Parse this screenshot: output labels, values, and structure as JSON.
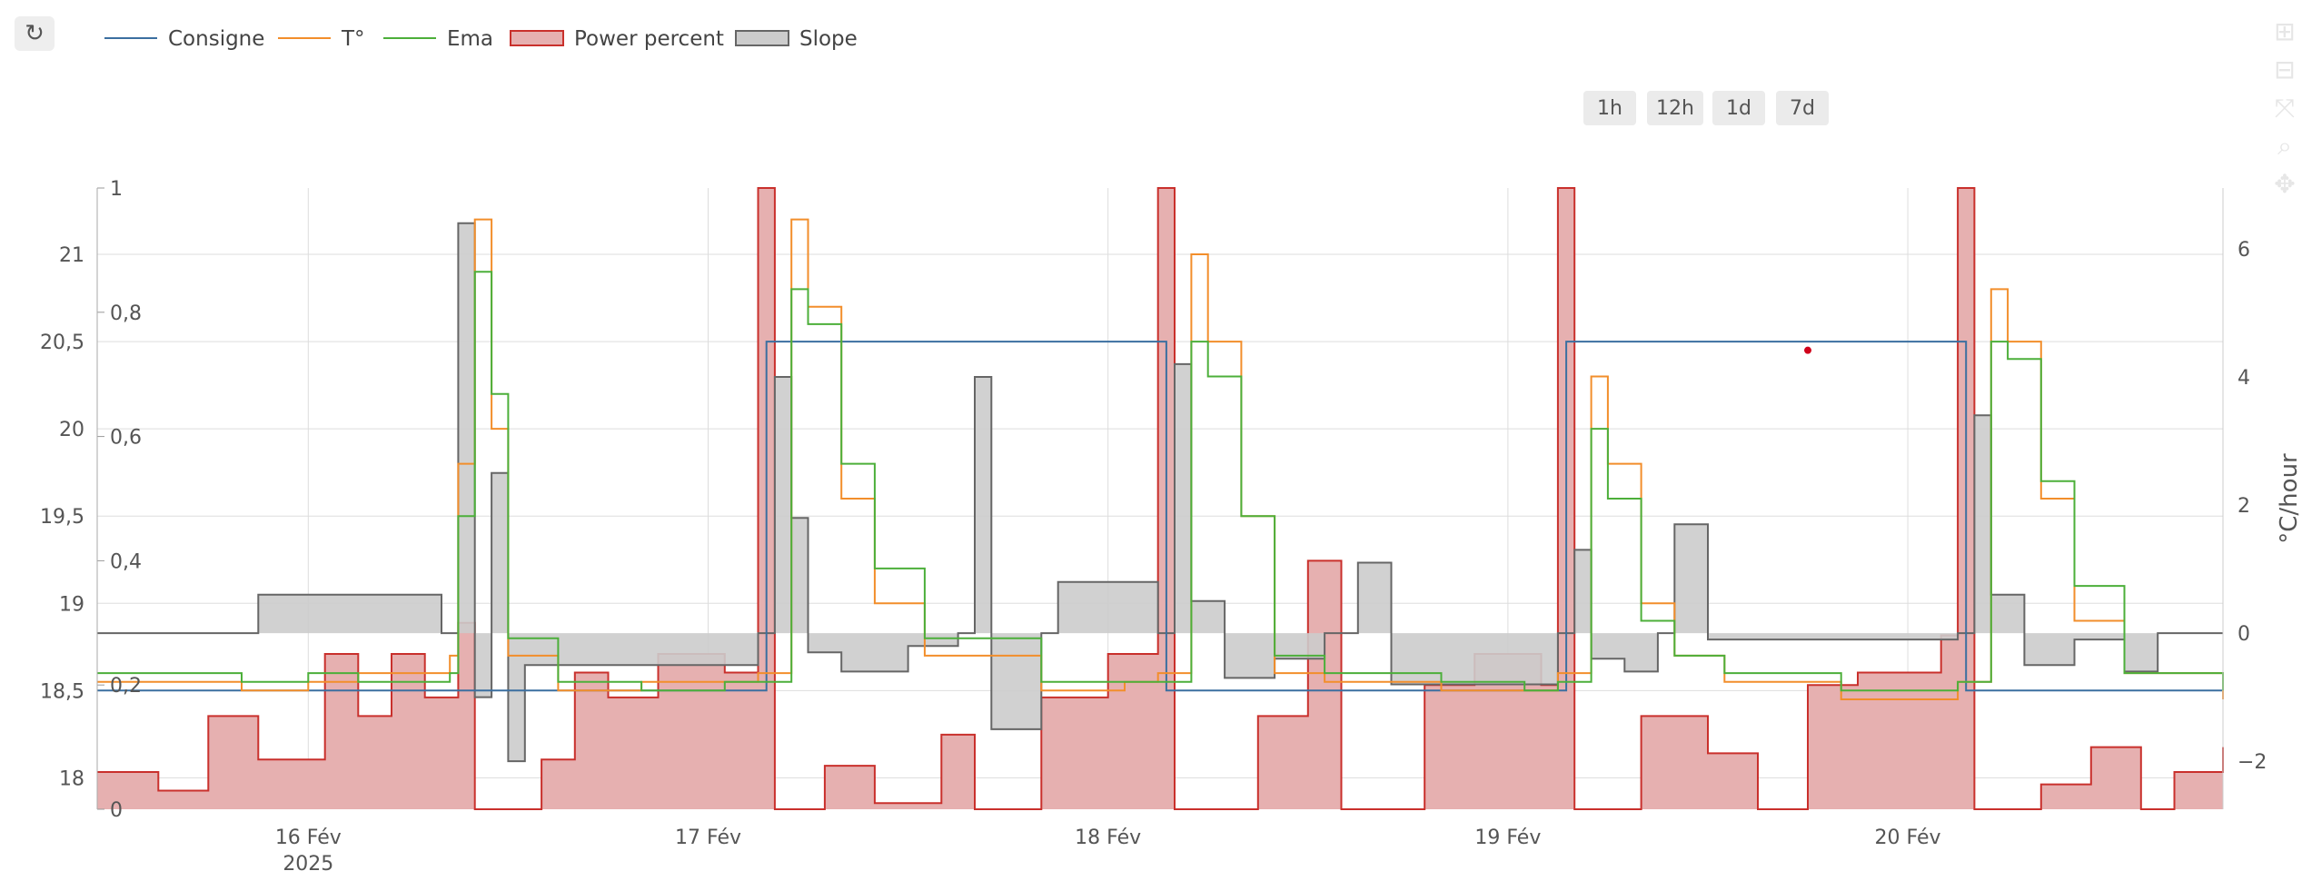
{
  "toolbar": {
    "refresh_icon": "↻"
  },
  "range_buttons": [
    "1h",
    "12h",
    "1d",
    "7d"
  ],
  "modebar": [
    "zoom-in-icon",
    "zoom-out-icon",
    "autoscale-icon",
    "zoom-icon",
    "pan-icon"
  ],
  "colors": {
    "consigne": "#3b6fa0",
    "temp": "#f28e2b",
    "ema": "#4caf3a",
    "power_line": "#c9302c",
    "power_fill": "#e6b0b0",
    "slope_line": "#666666",
    "slope_fill": "#cccccc",
    "grid": "#dddddd",
    "marker": "#d0021b"
  },
  "chart_data": {
    "type": "line",
    "legend_position": "top-left",
    "legend": [
      "Consigne",
      "T°",
      "Ema",
      "Power percent",
      "Slope"
    ],
    "grid": true,
    "x_ticks": [
      {
        "date": "2025-02-16 00:00",
        "label": "16 Fév",
        "sublabel": "2025"
      },
      {
        "date": "2025-02-17 00:00",
        "label": "17 Fév",
        "sublabel": ""
      },
      {
        "date": "2025-02-18 00:00",
        "label": "18 Fév",
        "sublabel": ""
      },
      {
        "date": "2025-02-19 00:00",
        "label": "19 Fév",
        "sublabel": ""
      },
      {
        "date": "2025-02-20 00:00",
        "label": "20 Fév",
        "sublabel": ""
      }
    ],
    "x_range": [
      "2025-02-15 11:20",
      "2025-02-20 18:55"
    ],
    "y_left": {
      "range": [
        17.82,
        21.38
      ],
      "ticks": [
        18,
        18.5,
        19,
        19.5,
        20,
        20.5,
        21
      ],
      "tick_labels": [
        "18",
        "18,5",
        "19",
        "19,5",
        "20",
        "20,5",
        "21"
      ]
    },
    "y_power": {
      "range": [
        0,
        1
      ],
      "ticks": [
        0,
        0.2,
        0.4,
        0.6,
        0.8,
        1
      ],
      "tick_labels": [
        "0",
        "0,2",
        "0,4",
        "0,6",
        "0,8",
        "1"
      ]
    },
    "y_right": {
      "label": "°C/hour",
      "range": [
        -2.75,
        6.95
      ],
      "ticks": [
        -2,
        0,
        2,
        4,
        6
      ],
      "tick_labels": [
        "−2",
        "0",
        "2",
        "4",
        "6"
      ]
    },
    "series": [
      {
        "name": "Consigne",
        "axis": "left",
        "x": [
          "2025-02-15 11:20",
          "2025-02-17 03:00",
          "2025-02-17 03:30",
          "2025-02-18 03:00",
          "2025-02-18 03:30",
          "2025-02-19 03:00",
          "2025-02-19 03:30",
          "2025-02-20 03:00",
          "2025-02-20 03:30",
          "2025-02-20 18:55"
        ],
        "y": [
          18.5,
          18.5,
          20.5,
          20.5,
          18.5,
          18.5,
          20.5,
          20.5,
          18.5,
          18.5
        ]
      },
      {
        "name": "T°",
        "axis": "left",
        "x": [
          "2025-02-15 11:20",
          "2025-02-15 20:00",
          "2025-02-16 00:00",
          "2025-02-16 03:00",
          "2025-02-16 06:00",
          "2025-02-16 08:30",
          "2025-02-16 09:00",
          "2025-02-16 10:00",
          "2025-02-16 11:00",
          "2025-02-16 12:00",
          "2025-02-16 15:00",
          "2025-02-16 20:00",
          "2025-02-17 01:00",
          "2025-02-17 03:00",
          "2025-02-17 05:00",
          "2025-02-17 06:00",
          "2025-02-17 08:00",
          "2025-02-17 10:00",
          "2025-02-17 13:00",
          "2025-02-17 20:00",
          "2025-02-18 01:00",
          "2025-02-18 03:00",
          "2025-02-18 05:00",
          "2025-02-18 06:00",
          "2025-02-18 08:00",
          "2025-02-18 10:00",
          "2025-02-18 13:00",
          "2025-02-18 20:00",
          "2025-02-19 01:00",
          "2025-02-19 03:00",
          "2025-02-19 05:00",
          "2025-02-19 06:00",
          "2025-02-19 08:00",
          "2025-02-19 10:00",
          "2025-02-19 13:00",
          "2025-02-19 20:00",
          "2025-02-20 01:00",
          "2025-02-20 03:00",
          "2025-02-20 05:00",
          "2025-02-20 06:00",
          "2025-02-20 08:00",
          "2025-02-20 10:00",
          "2025-02-20 13:00",
          "2025-02-20 18:55"
        ],
        "y": [
          18.55,
          18.5,
          18.55,
          18.6,
          18.6,
          18.7,
          19.8,
          21.2,
          20.0,
          18.7,
          18.5,
          18.55,
          18.55,
          18.6,
          21.2,
          20.7,
          19.6,
          19.0,
          18.7,
          18.5,
          18.55,
          18.6,
          21.0,
          20.5,
          19.5,
          18.6,
          18.55,
          18.5,
          18.5,
          18.6,
          20.3,
          19.8,
          19.0,
          18.7,
          18.55,
          18.45,
          18.45,
          18.55,
          20.8,
          20.5,
          19.6,
          18.9,
          18.6,
          18.45
        ]
      },
      {
        "name": "Ema",
        "axis": "left",
        "x": [
          "2025-02-15 11:20",
          "2025-02-15 20:00",
          "2025-02-16 00:00",
          "2025-02-16 03:00",
          "2025-02-16 06:00",
          "2025-02-16 08:30",
          "2025-02-16 09:00",
          "2025-02-16 10:00",
          "2025-02-16 11:00",
          "2025-02-16 12:00",
          "2025-02-16 15:00",
          "2025-02-16 20:00",
          "2025-02-17 01:00",
          "2025-02-17 03:00",
          "2025-02-17 05:00",
          "2025-02-17 06:00",
          "2025-02-17 08:00",
          "2025-02-17 10:00",
          "2025-02-17 13:00",
          "2025-02-17 20:00",
          "2025-02-18 01:00",
          "2025-02-18 03:00",
          "2025-02-18 05:00",
          "2025-02-18 06:00",
          "2025-02-18 08:00",
          "2025-02-18 10:00",
          "2025-02-18 13:00",
          "2025-02-18 20:00",
          "2025-02-19 01:00",
          "2025-02-19 03:00",
          "2025-02-19 05:00",
          "2025-02-19 06:00",
          "2025-02-19 08:00",
          "2025-02-19 10:00",
          "2025-02-19 13:00",
          "2025-02-19 20:00",
          "2025-02-20 01:00",
          "2025-02-20 03:00",
          "2025-02-20 05:00",
          "2025-02-20 06:00",
          "2025-02-20 08:00",
          "2025-02-20 10:00",
          "2025-02-20 13:00",
          "2025-02-20 18:55"
        ],
        "y": [
          18.6,
          18.55,
          18.6,
          18.55,
          18.55,
          18.6,
          19.5,
          20.9,
          20.2,
          18.8,
          18.55,
          18.5,
          18.55,
          18.55,
          20.8,
          20.6,
          19.8,
          19.2,
          18.8,
          18.55,
          18.55,
          18.55,
          20.5,
          20.3,
          19.5,
          18.7,
          18.6,
          18.55,
          18.5,
          18.55,
          20.0,
          19.6,
          18.9,
          18.7,
          18.6,
          18.5,
          18.5,
          18.55,
          20.5,
          20.4,
          19.7,
          19.1,
          18.6,
          18.5
        ]
      },
      {
        "name": "Power percent",
        "axis": "power",
        "x": [
          "2025-02-15 11:20",
          "2025-02-15 15:00",
          "2025-02-15 18:00",
          "2025-02-15 21:00",
          "2025-02-16 01:00",
          "2025-02-16 03:00",
          "2025-02-16 05:00",
          "2025-02-16 07:00",
          "2025-02-16 09:00",
          "2025-02-16 10:00",
          "2025-02-16 12:00",
          "2025-02-16 14:00",
          "2025-02-16 16:00",
          "2025-02-16 18:00",
          "2025-02-16 21:00",
          "2025-02-17 01:00",
          "2025-02-17 03:00",
          "2025-02-17 04:00",
          "2025-02-17 05:00",
          "2025-02-17 07:00",
          "2025-02-17 10:00",
          "2025-02-17 14:00",
          "2025-02-17 16:00",
          "2025-02-17 20:00",
          "2025-02-18 00:00",
          "2025-02-18 03:00",
          "2025-02-18 04:00",
          "2025-02-18 05:00",
          "2025-02-18 09:00",
          "2025-02-18 12:00",
          "2025-02-18 14:00",
          "2025-02-18 16:00",
          "2025-02-18 19:00",
          "2025-02-18 22:00",
          "2025-02-19 02:00",
          "2025-02-19 03:00",
          "2025-02-19 04:00",
          "2025-02-19 05:00",
          "2025-02-19 08:00",
          "2025-02-19 12:00",
          "2025-02-19 15:00",
          "2025-02-19 18:00",
          "2025-02-19 21:00",
          "2025-02-20 02:00",
          "2025-02-20 03:00",
          "2025-02-20 04:00",
          "2025-02-20 05:00",
          "2025-02-20 08:00",
          "2025-02-20 11:00",
          "2025-02-20 14:00",
          "2025-02-20 16:00",
          "2025-02-20 18:55"
        ],
        "y": [
          0.06,
          0.03,
          0.15,
          0.08,
          0.25,
          0.15,
          0.25,
          0.18,
          0.3,
          0.0,
          0.0,
          0.08,
          0.22,
          0.18,
          0.25,
          0.22,
          1.0,
          0.0,
          0.0,
          0.07,
          0.01,
          0.12,
          0.0,
          0.18,
          0.25,
          1.0,
          0.0,
          0.0,
          0.15,
          0.4,
          0.0,
          0.0,
          0.2,
          0.25,
          0.2,
          1.0,
          0.0,
          0.0,
          0.15,
          0.09,
          0.0,
          0.2,
          0.22,
          0.28,
          1.0,
          0.0,
          0.0,
          0.04,
          0.1,
          0.0,
          0.06,
          0.1
        ]
      },
      {
        "name": "Slope",
        "axis": "right",
        "x": [
          "2025-02-15 11:20",
          "2025-02-15 20:00",
          "2025-02-15 21:00",
          "2025-02-16 08:00",
          "2025-02-16 09:00",
          "2025-02-16 10:00",
          "2025-02-16 11:00",
          "2025-02-16 12:00",
          "2025-02-16 13:00",
          "2025-02-17 03:00",
          "2025-02-17 04:00",
          "2025-02-17 05:00",
          "2025-02-17 06:00",
          "2025-02-17 08:00",
          "2025-02-17 12:00",
          "2025-02-17 15:00",
          "2025-02-17 16:00",
          "2025-02-17 17:00",
          "2025-02-17 20:00",
          "2025-02-17 21:00",
          "2025-02-18 03:00",
          "2025-02-18 04:00",
          "2025-02-18 05:00",
          "2025-02-18 07:00",
          "2025-02-18 10:00",
          "2025-02-18 13:00",
          "2025-02-18 15:00",
          "2025-02-18 17:00",
          "2025-02-19 03:00",
          "2025-02-19 04:00",
          "2025-02-19 05:00",
          "2025-02-19 07:00",
          "2025-02-19 09:00",
          "2025-02-19 10:00",
          "2025-02-19 12:00",
          "2025-02-20 03:00",
          "2025-02-20 04:00",
          "2025-02-20 05:00",
          "2025-02-20 07:00",
          "2025-02-20 10:00",
          "2025-02-20 13:00",
          "2025-02-20 15:00",
          "2025-02-20 18:55"
        ],
        "y": [
          0.0,
          0.0,
          0.6,
          0.0,
          6.4,
          -1.0,
          2.5,
          -2.0,
          -0.5,
          0.0,
          4.0,
          1.8,
          -0.3,
          -0.6,
          -0.2,
          0.0,
          4.0,
          -1.5,
          0.0,
          0.8,
          0.0,
          4.2,
          0.5,
          -0.7,
          -0.4,
          0.0,
          1.1,
          -0.8,
          0.0,
          1.3,
          -0.4,
          -0.6,
          0.0,
          1.7,
          -0.1,
          0.0,
          3.4,
          0.6,
          -0.5,
          -0.1,
          -0.6,
          0.0,
          0.0
        ]
      }
    ],
    "marker": {
      "date": "2025-02-19 18:00",
      "value": 20.45,
      "axis": "left"
    }
  }
}
